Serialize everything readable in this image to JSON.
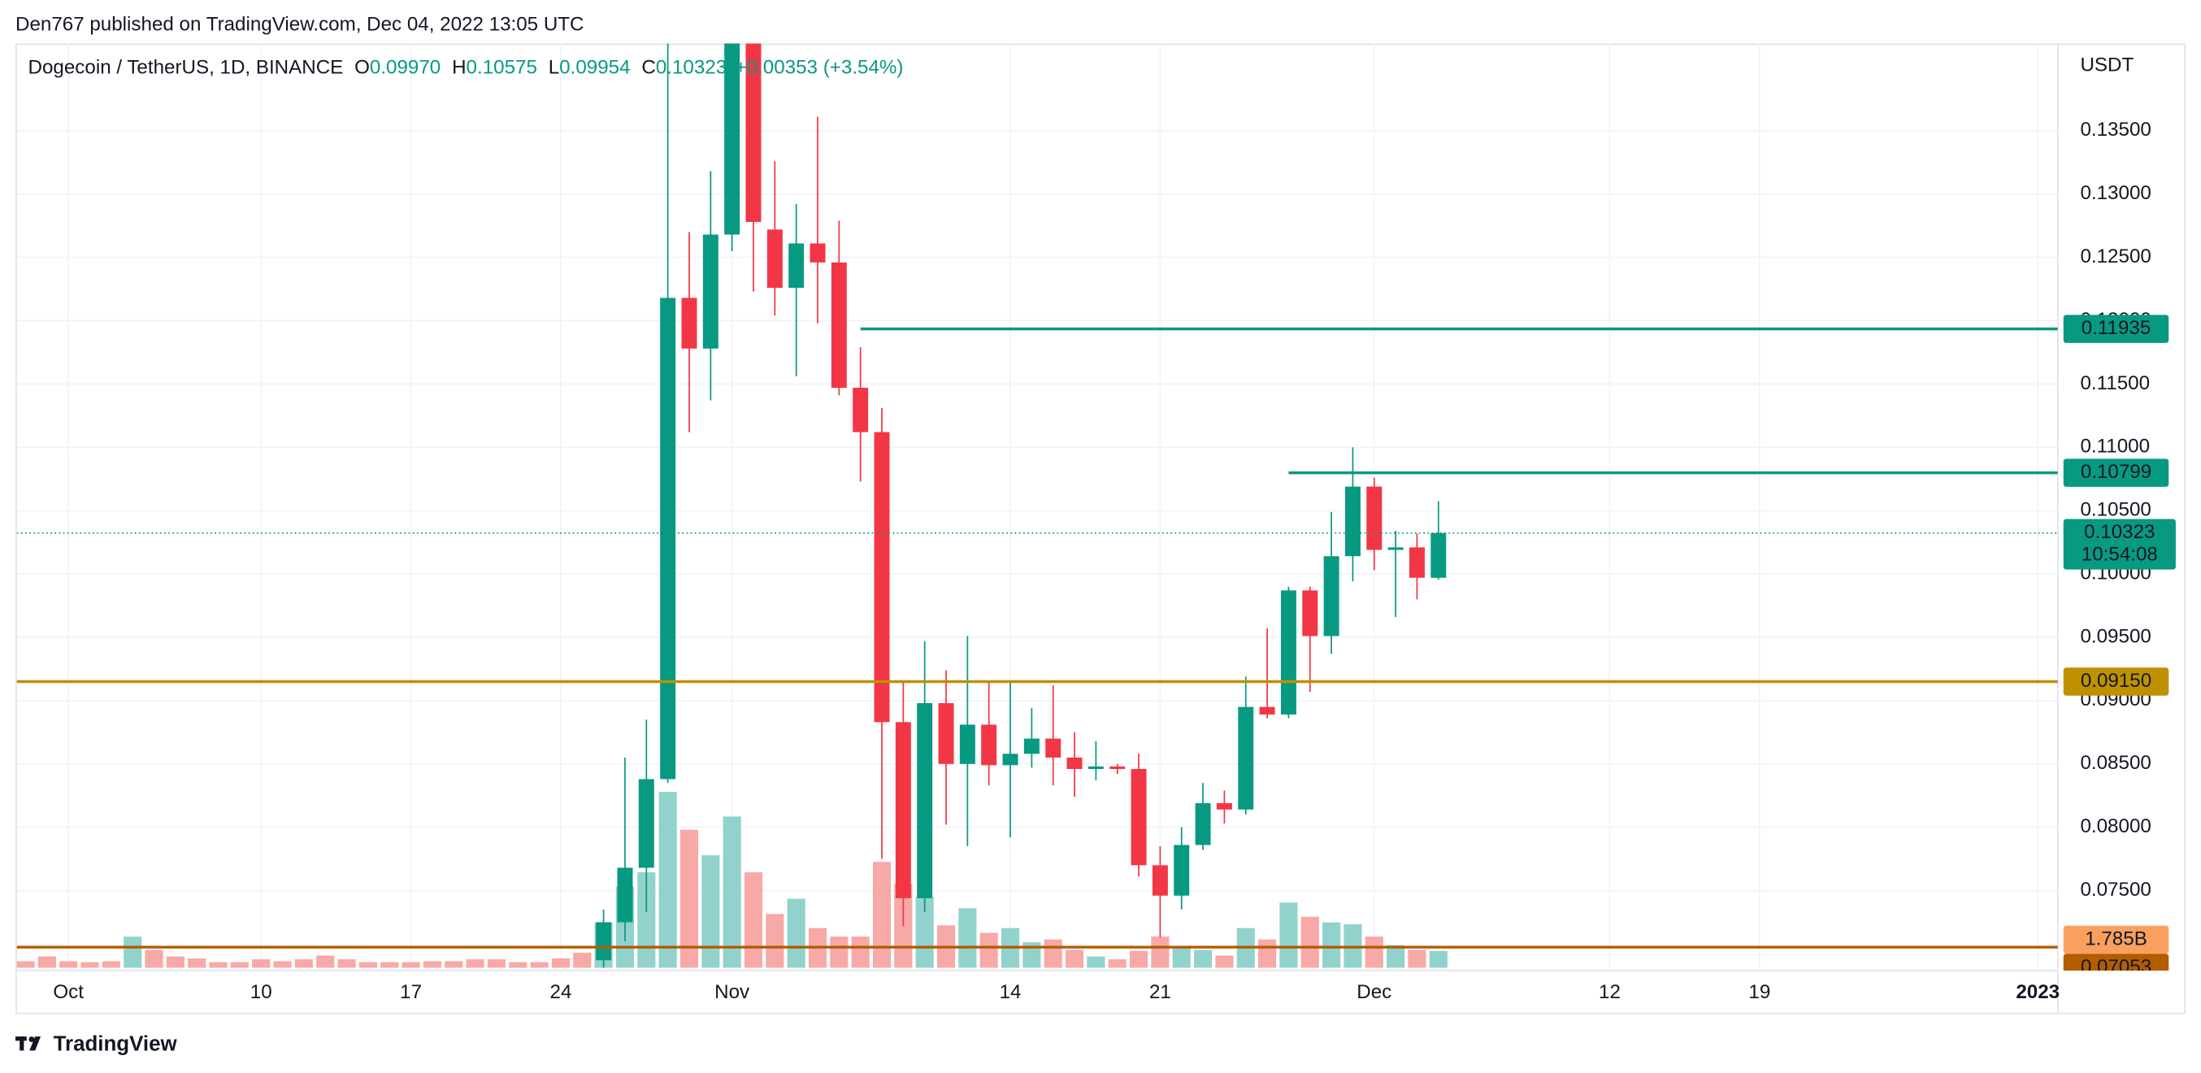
{
  "header": {
    "published": "Den767 published on TradingView.com, Dec 04, 2022 13:05 UTC"
  },
  "footer": {
    "brand": "TradingView"
  },
  "chart_data": {
    "type": "candlestick",
    "title": "Dogecoin / TetherUS, 1D, BINANCE",
    "legend": [
      {
        "key": "O",
        "label": "0.09970"
      },
      {
        "key": "H",
        "label": "0.10575"
      },
      {
        "key": "L",
        "label": "0.09954"
      },
      {
        "key": "C",
        "label": "0.10323"
      }
    ],
    "change": "+0.00353 (+3.54%)",
    "up_color": "#089981",
    "down_color": "#f23645",
    "x": [
      "2022-09-29",
      "2022-09-30",
      "2022-10-01",
      "2022-10-02",
      "2022-10-03",
      "2022-10-04",
      "2022-10-05",
      "2022-10-06",
      "2022-10-07",
      "2022-10-08",
      "2022-10-09",
      "2022-10-10",
      "2022-10-11",
      "2022-10-12",
      "2022-10-13",
      "2022-10-14",
      "2022-10-15",
      "2022-10-16",
      "2022-10-17",
      "2022-10-18",
      "2022-10-19",
      "2022-10-20",
      "2022-10-21",
      "2022-10-22",
      "2022-10-23",
      "2022-10-24",
      "2022-10-25",
      "2022-10-26",
      "2022-10-27",
      "2022-10-28",
      "2022-10-29",
      "2022-10-30",
      "2022-10-31",
      "2022-11-01",
      "2022-11-02",
      "2022-11-03",
      "2022-11-04",
      "2022-11-05",
      "2022-11-06",
      "2022-11-07",
      "2022-11-08",
      "2022-11-09",
      "2022-11-10",
      "2022-11-11",
      "2022-11-12",
      "2022-11-13",
      "2022-11-14",
      "2022-11-15",
      "2022-11-16",
      "2022-11-17",
      "2022-11-18",
      "2022-11-19",
      "2022-11-20",
      "2022-11-21",
      "2022-11-22",
      "2022-11-23",
      "2022-11-24",
      "2022-11-25",
      "2022-11-26",
      "2022-11-27",
      "2022-11-28",
      "2022-11-29",
      "2022-11-30",
      "2022-12-01",
      "2022-12-02",
      "2022-12-03",
      "2022-12-04"
    ],
    "open": [
      null,
      null,
      null,
      null,
      null,
      null,
      null,
      null,
      null,
      null,
      null,
      null,
      null,
      null,
      null,
      null,
      null,
      null,
      null,
      null,
      null,
      null,
      null,
      null,
      null,
      null,
      null,
      0.0695,
      0.0725,
      0.0768,
      0.0838,
      0.1218,
      0.1178,
      0.1268,
      0.145,
      0.1272,
      0.1226,
      0.1261,
      0.1246,
      0.1147,
      0.1112,
      0.0883,
      0.0744,
      0.0898,
      0.085,
      0.0881,
      0.0849,
      0.0858,
      0.087,
      0.0855,
      0.0846,
      0.0848,
      0.0846,
      0.077,
      0.0746,
      0.0786,
      0.0819,
      0.0814,
      0.0895,
      0.0889,
      0.0987,
      0.0951,
      0.1014,
      0.1069,
      0.1019,
      0.1021,
      0.0997
    ],
    "high": [
      null,
      null,
      null,
      null,
      null,
      null,
      null,
      null,
      null,
      null,
      null,
      null,
      null,
      null,
      null,
      null,
      null,
      null,
      null,
      null,
      null,
      null,
      null,
      null,
      null,
      null,
      null,
      0.0735,
      0.0855,
      0.0885,
      0.1587,
      0.127,
      0.1318,
      0.157,
      0.149,
      0.1326,
      0.1292,
      0.1361,
      0.1279,
      0.1179,
      0.1131,
      0.0916,
      0.0947,
      0.0924,
      0.0951,
      0.0915,
      0.0916,
      0.0894,
      0.0912,
      0.0875,
      0.0868,
      0.085,
      0.0858,
      0.0785,
      0.08,
      0.0835,
      0.0829,
      0.0919,
      0.0957,
      0.099,
      0.099,
      0.1049,
      0.11,
      0.1076,
      0.1034,
      0.1032,
      0.10575
    ],
    "low": [
      null,
      null,
      null,
      null,
      null,
      null,
      null,
      null,
      null,
      null,
      null,
      null,
      null,
      null,
      null,
      null,
      null,
      null,
      null,
      null,
      null,
      null,
      null,
      null,
      null,
      null,
      null,
      0.0685,
      0.071,
      0.0733,
      0.0835,
      0.1112,
      0.1137,
      0.1255,
      0.1223,
      0.1204,
      0.1156,
      0.1198,
      0.1141,
      0.1073,
      0.0775,
      0.0722,
      0.0733,
      0.0802,
      0.0785,
      0.0833,
      0.0792,
      0.0847,
      0.0833,
      0.0824,
      0.0837,
      0.0842,
      0.0761,
      0.0713,
      0.0735,
      0.0782,
      0.0803,
      0.081,
      0.0886,
      0.0886,
      0.0907,
      0.0937,
      0.0994,
      0.1003,
      0.0966,
      0.098,
      0.09954
    ],
    "close": [
      null,
      null,
      null,
      null,
      null,
      null,
      null,
      null,
      null,
      null,
      null,
      null,
      null,
      null,
      null,
      null,
      null,
      null,
      null,
      null,
      null,
      null,
      null,
      null,
      null,
      null,
      null,
      0.0725,
      0.0768,
      0.0838,
      0.1218,
      0.1178,
      0.1268,
      0.145,
      0.1278,
      0.1226,
      0.1261,
      0.1246,
      0.1147,
      0.1112,
      0.0883,
      0.0744,
      0.0898,
      0.085,
      0.0881,
      0.0849,
      0.0858,
      0.087,
      0.0855,
      0.0846,
      0.0848,
      0.0846,
      0.077,
      0.0746,
      0.0786,
      0.0819,
      0.0814,
      0.0895,
      0.0889,
      0.0987,
      0.0951,
      0.1014,
      0.1069,
      0.1019,
      0.1021,
      0.0997,
      0.10323
    ],
    "volume": {
      "values": [
        0.7,
        1.2,
        0.7,
        0.6,
        0.7,
        3.3,
        1.9,
        1.2,
        1.0,
        0.6,
        0.6,
        0.9,
        0.7,
        0.9,
        1.3,
        0.9,
        0.6,
        0.6,
        0.6,
        0.7,
        0.7,
        0.9,
        0.9,
        0.6,
        0.6,
        1.0,
        1.6,
        4.8,
        8.6,
        10.1,
        18.6,
        14.6,
        11.9,
        16.0,
        10.1,
        5.7,
        7.3,
        4.2,
        3.3,
        3.3,
        11.2,
        8.9,
        7.5,
        4.5,
        6.3,
        3.7,
        4.2,
        2.7,
        3.0,
        1.9,
        1.2,
        0.9,
        1.8,
        3.3,
        2.1,
        1.9,
        1.3,
        4.2,
        3.0,
        6.9,
        5.4,
        4.8,
        4.6,
        3.3,
        2.4,
        1.9,
        1.785
      ],
      "colors": [
        "#f7a9a7",
        "#f7a9a7",
        "#f7a9a7",
        "#f7a9a7",
        "#f7a9a7",
        "#92d2cc",
        "#f7a9a7",
        "#f7a9a7",
        "#f7a9a7",
        "#f7a9a7",
        "#f7a9a7",
        "#f7a9a7",
        "#f7a9a7",
        "#f7a9a7",
        "#f7a9a7",
        "#f7a9a7",
        "#f7a9a7",
        "#f7a9a7",
        "#f7a9a7",
        "#f7a9a7",
        "#f7a9a7",
        "#f7a9a7",
        "#f7a9a7",
        "#f7a9a7",
        "#f7a9a7",
        "#f7a9a7",
        "#f7a9a7",
        "#92d2cc",
        "#92d2cc",
        "#92d2cc",
        "#92d2cc",
        "#f7a9a7",
        "#92d2cc",
        "#92d2cc",
        "#f7a9a7",
        "#f7a9a7",
        "#92d2cc",
        "#f7a9a7",
        "#f7a9a7",
        "#f7a9a7",
        "#f7a9a7",
        "#f7a9a7",
        "#92d2cc",
        "#f7a9a7",
        "#92d2cc",
        "#f7a9a7",
        "#92d2cc",
        "#92d2cc",
        "#f7a9a7",
        "#f7a9a7",
        "#92d2cc",
        "#f7a9a7",
        "#f7a9a7",
        "#f7a9a7",
        "#92d2cc",
        "#92d2cc",
        "#f7a9a7",
        "#92d2cc",
        "#f7a9a7",
        "#92d2cc",
        "#f7a9a7",
        "#92d2cc",
        "#92d2cc",
        "#f7a9a7",
        "#92d2cc",
        "#f7a9a7",
        "#92d2cc"
      ],
      "last_label": "1.785B",
      "label_color": "#f9a05f"
    },
    "xlim": [
      "2022-09-28",
      "2023-01-02"
    ],
    "xticks": [
      {
        "value": "2022-10-01",
        "label": "Oct"
      },
      {
        "value": "2022-10-10",
        "label": "10"
      },
      {
        "value": "2022-10-17",
        "label": "17"
      },
      {
        "value": "2022-10-24",
        "label": "24"
      },
      {
        "value": "2022-11-01",
        "label": "Nov"
      },
      {
        "value": "2022-11-14",
        "label": "14"
      },
      {
        "value": "2022-11-21",
        "label": "21"
      },
      {
        "value": "2022-12-01",
        "label": "Dec"
      },
      {
        "value": "2022-12-12",
        "label": "12"
      },
      {
        "value": "2022-12-19",
        "label": "19"
      },
      {
        "value": "2023-01-01",
        "label": "2023",
        "bold": true
      }
    ],
    "ylim": [
      0.0689,
      0.142
    ],
    "yticks": [
      {
        "value": 0.075,
        "label": "0.07500"
      },
      {
        "value": 0.08,
        "label": "0.08000"
      },
      {
        "value": 0.085,
        "label": "0.08500"
      },
      {
        "value": 0.09,
        "label": "0.09000"
      },
      {
        "value": 0.095,
        "label": "0.09500"
      },
      {
        "value": 0.1,
        "label": "0.10000"
      },
      {
        "value": 0.105,
        "label": "0.10500"
      },
      {
        "value": 0.11,
        "label": "0.11000"
      },
      {
        "value": 0.115,
        "label": "0.11500"
      },
      {
        "value": 0.12,
        "label": "0.12000"
      },
      {
        "value": 0.125,
        "label": "0.12500"
      },
      {
        "value": 0.13,
        "label": "0.13000"
      },
      {
        "value": 0.135,
        "label": "0.13500"
      }
    ],
    "y_unit": "USDT",
    "grid": true,
    "levels": [
      {
        "value": 0.11935,
        "label": "0.11935",
        "color": "#089981",
        "start": "2022-11-07"
      },
      {
        "value": 0.10799,
        "label": "0.10799",
        "color": "#089981",
        "start": "2022-11-27"
      },
      {
        "value": 0.0915,
        "label": "0.09150",
        "color": "#bf9000",
        "start": "2022-09-28"
      },
      {
        "value": 0.07053,
        "label": "0.07053",
        "color": "#b35c00",
        "start": "2022-09-28"
      }
    ],
    "last_price": {
      "value": 0.10323,
      "label": "0.10323",
      "countdown": "10:54:08",
      "color": "#089981"
    }
  }
}
